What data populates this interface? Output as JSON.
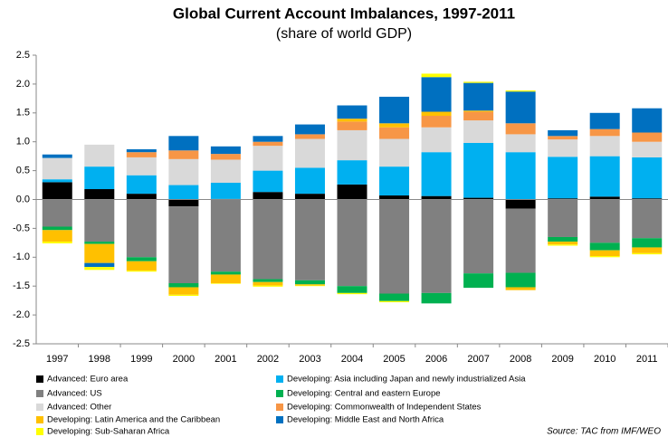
{
  "chart_data": {
    "type": "stacked_bar",
    "title": "Global Current Account Imbalances, 1997-2011",
    "subtitle": "(share of world GDP)",
    "source": "Source: TAC from IMF/WEO",
    "categories": [
      "1997",
      "1998",
      "1999",
      "2000",
      "2001",
      "2002",
      "2003",
      "2004",
      "2005",
      "2006",
      "2007",
      "2008",
      "2009",
      "2010",
      "2011"
    ],
    "series": [
      {
        "name": "Advanced: Euro area",
        "color": "#000000",
        "values": [
          0.3,
          0.18,
          0.1,
          -0.12,
          0.01,
          0.13,
          0.1,
          0.26,
          0.07,
          0.06,
          0.03,
          -0.16,
          0.02,
          0.05,
          0.02
        ]
      },
      {
        "name": "Advanced: US",
        "color": "#808080",
        "values": [
          -0.47,
          -0.73,
          -1.0,
          -1.33,
          -1.25,
          -1.38,
          -1.4,
          -1.5,
          -1.63,
          -1.62,
          -1.28,
          -1.11,
          -0.65,
          -0.75,
          -0.67
        ]
      },
      {
        "name": "Advanced: Other",
        "color": "#D9D9D9",
        "values": [
          0.37,
          0.38,
          0.31,
          0.45,
          0.4,
          0.43,
          0.5,
          0.52,
          0.48,
          0.43,
          0.39,
          0.31,
          0.3,
          0.35,
          0.27
        ]
      },
      {
        "name": "Developing: Latin America and the Caribbean",
        "color": "#FFC000",
        "values": [
          -0.2,
          -0.33,
          -0.16,
          -0.13,
          -0.15,
          -0.06,
          -0.02,
          0.05,
          0.07,
          0.07,
          0.02,
          -0.05,
          -0.05,
          -0.1,
          -0.1
        ]
      },
      {
        "name": "Developing: Sub-Saharan Africa",
        "color": "#FFFF00",
        "values": [
          -0.03,
          -0.05,
          -0.02,
          -0.02,
          -0.01,
          -0.02,
          -0.01,
          -0.02,
          -0.02,
          0.06,
          0.02,
          0.02,
          -0.02,
          -0.02,
          -0.02
        ]
      },
      {
        "name": "Developing: Asia including Japan and newly industrialized Asia",
        "color": "#00B0F0",
        "values": [
          0.05,
          0.39,
          0.32,
          0.25,
          0.28,
          0.37,
          0.45,
          0.42,
          0.5,
          0.76,
          0.95,
          0.82,
          0.72,
          0.7,
          0.71
        ]
      },
      {
        "name": "Developing: Central and eastern Europe",
        "color": "#00B050",
        "values": [
          -0.06,
          -0.04,
          -0.07,
          -0.07,
          -0.05,
          -0.05,
          -0.07,
          -0.12,
          -0.13,
          -0.18,
          -0.25,
          -0.25,
          -0.08,
          -0.13,
          -0.16
        ]
      },
      {
        "name": "Developing: Commonwealth  of Independent States",
        "color": "#F79646",
        "values": [
          0,
          0,
          0.09,
          0.15,
          0.1,
          0.07,
          0.08,
          0.15,
          0.2,
          0.2,
          0.15,
          0.19,
          0.06,
          0.12,
          0.16
        ]
      },
      {
        "name": "Developing: Middle East and North Africa",
        "color": "#0070C0",
        "values": [
          0.06,
          -0.07,
          0.05,
          0.25,
          0.13,
          0.1,
          0.17,
          0.23,
          0.46,
          0.6,
          0.48,
          0.55,
          0.1,
          0.28,
          0.42
        ]
      }
    ],
    "ylim": [
      -2.5,
      2.5
    ],
    "yticks": [
      -2.5,
      {
        "value": -2.0,
        "label": "-2.0"
      },
      -1.5,
      {
        "value": -1.0,
        "label": "-1.0"
      },
      -0.5,
      {
        "value": 0,
        "label": "0.0"
      },
      0.5,
      {
        "value": 1.0,
        "label": "1.0"
      },
      1.5,
      {
        "value": 2.0,
        "label": "2.0"
      },
      2.5
    ],
    "grid": false
  }
}
